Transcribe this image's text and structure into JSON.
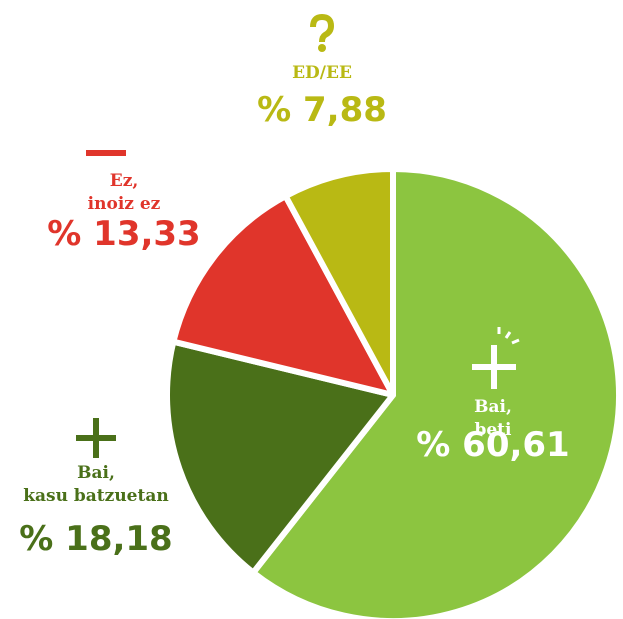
{
  "chart_data": {
    "type": "pie",
    "categories": [
      "Bai, beti",
      "Bai, kasu batzuetan",
      "Ez, inoiz ez",
      "ED/EE"
    ],
    "values": [
      60.61,
      18.18,
      13.33,
      7.88
    ],
    "value_labels": [
      "% 60,61",
      "% 18,18",
      "% 13,33",
      "% 7,88"
    ],
    "colors": [
      "#8cc540",
      "#4a7019",
      "#e0352b",
      "#b9b914"
    ]
  }
}
